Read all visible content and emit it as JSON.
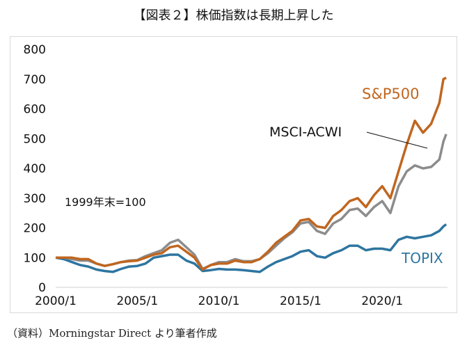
{
  "title": "【図表２】株価指数は長期上昇した",
  "source": "（資料）Morningstar Direct より筆者作成",
  "chart_data": {
    "type": "line",
    "title": "【図表２】株価指数は長期上昇した",
    "xlabel": "",
    "ylabel": "",
    "annotation": "1999年末=100",
    "ylim": [
      0,
      800
    ],
    "yticks": [
      0,
      100,
      200,
      300,
      400,
      500,
      600,
      700,
      800
    ],
    "xlim": [
      2000.0,
      2024.0
    ],
    "xticks": [
      {
        "value": 2000.0,
        "label": "2000/1"
      },
      {
        "value": 2005.0,
        "label": "2005/1"
      },
      {
        "value": 2010.0,
        "label": "2010/1"
      },
      {
        "value": 2015.0,
        "label": "2015/1"
      },
      {
        "value": 2020.0,
        "label": "2020/1"
      }
    ],
    "grid": false,
    "legend": "inline labels",
    "x": [
      2000.0,
      2000.5,
      2001.0,
      2001.5,
      2002.0,
      2002.5,
      2003.0,
      2003.5,
      2004.0,
      2004.5,
      2005.0,
      2005.5,
      2006.0,
      2006.5,
      2007.0,
      2007.5,
      2008.0,
      2008.5,
      2009.0,
      2009.5,
      2010.0,
      2010.5,
      2011.0,
      2011.5,
      2012.0,
      2012.5,
      2013.0,
      2013.5,
      2014.0,
      2014.5,
      2015.0,
      2015.5,
      2016.0,
      2016.5,
      2017.0,
      2017.5,
      2018.0,
      2018.5,
      2019.0,
      2019.5,
      2020.0,
      2020.5,
      2021.0,
      2021.5,
      2022.0,
      2022.5,
      2023.0,
      2023.5,
      2023.75,
      2023.92
    ],
    "series": [
      {
        "name": "S&P500",
        "color": "#c0661f",
        "values": [
          100,
          100,
          100,
          95,
          95,
          80,
          72,
          78,
          85,
          88,
          90,
          100,
          110,
          115,
          135,
          140,
          120,
          100,
          60,
          75,
          80,
          80,
          90,
          85,
          85,
          95,
          120,
          150,
          170,
          190,
          225,
          230,
          205,
          200,
          240,
          260,
          290,
          300,
          270,
          310,
          340,
          300,
          390,
          480,
          560,
          520,
          550,
          620,
          700,
          705
        ]
      },
      {
        "name": "MSCI-ACWI",
        "color": "#8c8c8c",
        "values": [
          100,
          100,
          95,
          90,
          90,
          80,
          72,
          78,
          85,
          90,
          92,
          105,
          115,
          125,
          150,
          160,
          135,
          110,
          62,
          75,
          85,
          85,
          95,
          88,
          88,
          95,
          115,
          140,
          165,
          185,
          215,
          220,
          190,
          180,
          215,
          230,
          260,
          265,
          240,
          270,
          290,
          250,
          340,
          390,
          410,
          400,
          405,
          430,
          490,
          515
        ]
      },
      {
        "name": "TOPIX",
        "color": "#2e75a0",
        "values": [
          100,
          95,
          85,
          75,
          70,
          60,
          55,
          52,
          62,
          70,
          72,
          80,
          100,
          105,
          110,
          110,
          90,
          80,
          55,
          58,
          62,
          60,
          60,
          58,
          55,
          52,
          70,
          85,
          95,
          105,
          120,
          125,
          105,
          100,
          115,
          125,
          140,
          140,
          125,
          130,
          130,
          125,
          160,
          170,
          165,
          170,
          175,
          190,
          205,
          212
        ]
      }
    ]
  }
}
